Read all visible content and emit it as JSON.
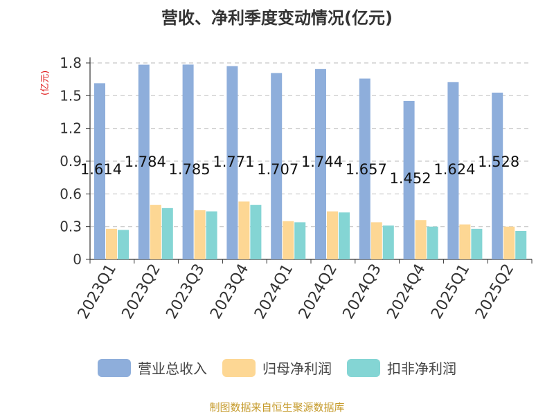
{
  "title": "营收、净利季度变动情况(亿元)",
  "y_unit": "(亿元)",
  "source": "制图数据来自恒生聚源数据库",
  "chart_data": {
    "type": "bar",
    "categories": [
      "2023Q1",
      "2023Q2",
      "2023Q3",
      "2023Q4",
      "2024Q1",
      "2024Q2",
      "2024Q3",
      "2024Q4",
      "2025Q1",
      "2025Q2"
    ],
    "series": [
      {
        "name": "营业总收入",
        "color": "#8eaedb",
        "values": [
          1.614,
          1.784,
          1.785,
          1.771,
          1.707,
          1.744,
          1.657,
          1.452,
          1.624,
          1.528
        ],
        "labels": [
          "1.614",
          "1.784",
          "1.785",
          "1.771",
          "1.707",
          "1.744",
          "1.657",
          "1.452",
          "1.624",
          "1.528"
        ]
      },
      {
        "name": "归母净利润",
        "color": "#fdd794",
        "values": [
          0.28,
          0.5,
          0.45,
          0.53,
          0.35,
          0.44,
          0.34,
          0.36,
          0.32,
          0.3
        ]
      },
      {
        "name": "扣非净利润",
        "color": "#84d5d4",
        "values": [
          0.27,
          0.47,
          0.44,
          0.5,
          0.34,
          0.43,
          0.31,
          0.3,
          0.28,
          0.26
        ]
      }
    ],
    "ylim": [
      0,
      1.8
    ],
    "yticks": [
      "0",
      "0.3",
      "0.6",
      "0.9",
      "1.2",
      "1.5",
      "1.8"
    ],
    "grid": true,
    "legend_position": "bottom"
  }
}
